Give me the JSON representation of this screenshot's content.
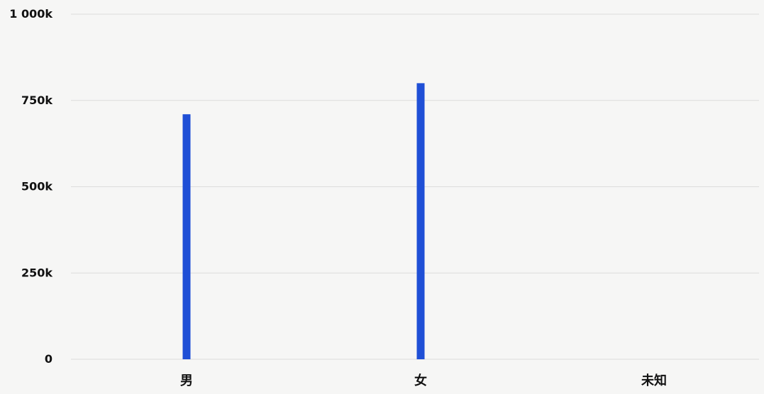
{
  "chart_data": {
    "type": "bar",
    "categories": [
      "男",
      "女",
      "未知"
    ],
    "values": [
      710000,
      800000,
      0
    ],
    "ylim": [
      0,
      1000000
    ],
    "yticks": [
      {
        "value": 0,
        "label": "0"
      },
      {
        "value": 250000,
        "label": "250k"
      },
      {
        "value": 500000,
        "label": "500k"
      },
      {
        "value": 750000,
        "label": "750k"
      },
      {
        "value": 1000000,
        "label": "1 000k"
      }
    ],
    "grid": true,
    "legend": "none",
    "colors": {
      "bar": "#1f4fd6",
      "grid": "#dcdcdc",
      "text": "#111111"
    }
  }
}
